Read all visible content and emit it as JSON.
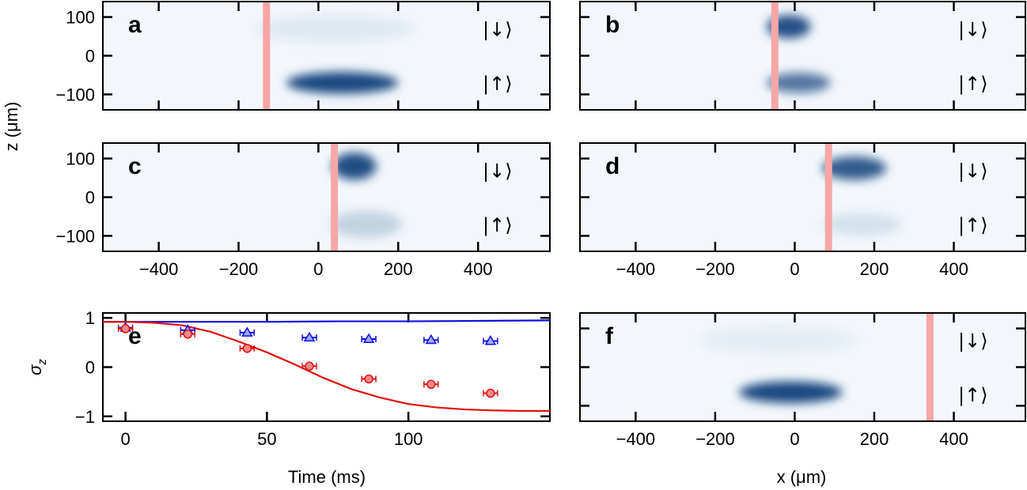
{
  "figure": {
    "ylabel_shared": "z (μm)",
    "xlabel_bottom_left": "Time (ms)",
    "xlabel_bottom_right": "x (μm)"
  },
  "colors": {
    "frame": "#000000",
    "bg": "#f3f7fc",
    "cloud": "#0d3f7a",
    "marker_band": "#f6a6a6",
    "red": "#e01010",
    "blue": "#1010e0"
  },
  "chart_data": [
    {
      "id": "a",
      "label": "a",
      "type": "heatmap",
      "x_ticks": [
        -400,
        -200,
        0,
        200,
        400
      ],
      "x_tick_labels": [
        "−400",
        "−200",
        "0",
        "200",
        "400"
      ],
      "y_ticks": [
        100,
        0,
        -100
      ],
      "y_tick_labels": [
        "100",
        "0",
        "−100"
      ],
      "xlim": [
        -540,
        580
      ],
      "ylim": [
        -140,
        140
      ],
      "show_x_labels": false,
      "show_y_labels": true,
      "marker_x": -130,
      "state_labels": [
        "|↓⟩",
        "|↑⟩"
      ],
      "clouds": [
        {
          "x": 60,
          "z": -70,
          "wx": 140,
          "wz": 28,
          "intensity": 0.95
        },
        {
          "x": 40,
          "z": 70,
          "wx": 200,
          "wz": 35,
          "intensity": 0.08
        }
      ]
    },
    {
      "id": "b",
      "label": "b",
      "type": "heatmap",
      "x_ticks": [
        -400,
        -200,
        0,
        200,
        400
      ],
      "x_tick_labels": [
        "−400",
        "−200",
        "0",
        "200",
        "400"
      ],
      "y_ticks": [
        100,
        0,
        -100
      ],
      "y_tick_labels": [
        "100",
        "0",
        "−100"
      ],
      "xlim": [
        -540,
        580
      ],
      "ylim": [
        -140,
        140
      ],
      "show_x_labels": false,
      "show_y_labels": false,
      "marker_x": -50,
      "state_labels": [
        "|↓⟩",
        "|↑⟩"
      ],
      "clouds": [
        {
          "x": -15,
          "z": 75,
          "wx": 55,
          "wz": 30,
          "intensity": 0.9
        },
        {
          "x": 10,
          "z": -70,
          "wx": 80,
          "wz": 26,
          "intensity": 0.7
        }
      ]
    },
    {
      "id": "c",
      "label": "c",
      "type": "heatmap",
      "x_ticks": [
        -400,
        -200,
        0,
        200,
        400
      ],
      "x_tick_labels": [
        "−400",
        "−200",
        "0",
        "200",
        "400"
      ],
      "y_ticks": [
        100,
        0,
        -100
      ],
      "y_tick_labels": [
        "100",
        "0",
        "−100"
      ],
      "xlim": [
        -540,
        580
      ],
      "ylim": [
        -140,
        140
      ],
      "show_x_labels": true,
      "show_y_labels": true,
      "marker_x": 40,
      "state_labels": [
        "|↓⟩",
        "|↑⟩"
      ],
      "clouds": [
        {
          "x": 90,
          "z": 80,
          "wx": 55,
          "wz": 35,
          "intensity": 0.92
        },
        {
          "x": 120,
          "z": -70,
          "wx": 90,
          "wz": 35,
          "intensity": 0.2
        }
      ]
    },
    {
      "id": "d",
      "label": "d",
      "type": "heatmap",
      "x_ticks": [
        -400,
        -200,
        0,
        200,
        400
      ],
      "x_tick_labels": [
        "−400",
        "−200",
        "0",
        "200",
        "400"
      ],
      "y_ticks": [
        100,
        0,
        -100
      ],
      "y_tick_labels": [
        "100",
        "0",
        "−100"
      ],
      "xlim": [
        -540,
        580
      ],
      "ylim": [
        -140,
        140
      ],
      "show_x_labels": true,
      "show_y_labels": false,
      "marker_x": 85,
      "state_labels": [
        "|↓⟩",
        "|↑⟩"
      ],
      "clouds": [
        {
          "x": 150,
          "z": 75,
          "wx": 80,
          "wz": 30,
          "intensity": 0.85
        },
        {
          "x": 170,
          "z": -70,
          "wx": 100,
          "wz": 30,
          "intensity": 0.12
        }
      ]
    },
    {
      "id": "e",
      "label": "e",
      "type": "scatter",
      "xlabel": "Time (ms)",
      "ylabel": "σz",
      "xlim": [
        -8,
        150
      ],
      "ylim": [
        -1.1,
        1.1
      ],
      "x_ticks": [
        0,
        50,
        100
      ],
      "x_tick_labels": [
        "0",
        "50",
        "100"
      ],
      "y_ticks": [
        1,
        0,
        -1
      ],
      "y_tick_labels": [
        "1",
        "0",
        "−1"
      ],
      "series": [
        {
          "name": "blue-triangles",
          "marker": "triangle",
          "color": "#1010e0",
          "x": [
            0,
            22,
            43,
            65,
            86,
            108,
            129
          ],
          "y": [
            0.8,
            0.75,
            0.7,
            0.6,
            0.57,
            0.55,
            0.53
          ],
          "xerr": 2.5
        },
        {
          "name": "red-circles",
          "marker": "circle",
          "color": "#e01010",
          "x": [
            0,
            22,
            43,
            65,
            86,
            108,
            129
          ],
          "y": [
            0.78,
            0.67,
            0.38,
            0.02,
            -0.24,
            -0.35,
            -0.53
          ],
          "xerr": 2.5
        },
        {
          "name": "blue-curve",
          "line": true,
          "color": "#1010e0",
          "x": [
            -8,
            0,
            25,
            50,
            75,
            100,
            125,
            150
          ],
          "y": [
            0.92,
            0.92,
            0.92,
            0.92,
            0.93,
            0.93,
            0.94,
            0.95
          ]
        },
        {
          "name": "red-curve",
          "line": true,
          "color": "#e01010",
          "x": [
            -8,
            0,
            10,
            20,
            30,
            40,
            50,
            60,
            70,
            80,
            90,
            100,
            110,
            120,
            130,
            140,
            150
          ],
          "y": [
            0.92,
            0.92,
            0.9,
            0.85,
            0.72,
            0.52,
            0.3,
            0.05,
            -0.22,
            -0.45,
            -0.62,
            -0.75,
            -0.82,
            -0.86,
            -0.88,
            -0.89,
            -0.89
          ]
        }
      ]
    },
    {
      "id": "f",
      "label": "f",
      "type": "heatmap",
      "x_ticks": [
        -400,
        -200,
        0,
        200,
        400
      ],
      "x_tick_labels": [
        "−400",
        "−200",
        "0",
        "200",
        "400"
      ],
      "y_ticks": [
        100,
        0,
        -100
      ],
      "y_tick_labels": [
        "100",
        "0",
        "−100"
      ],
      "xlim": [
        -540,
        580
      ],
      "ylim": [
        -140,
        140
      ],
      "show_x_labels": true,
      "show_y_labels": false,
      "marker_x": 340,
      "state_labels": [
        "|↓⟩",
        "|↑⟩"
      ],
      "clouds": [
        {
          "x": -10,
          "z": -65,
          "wx": 130,
          "wz": 28,
          "intensity": 0.95
        },
        {
          "x": -40,
          "z": 70,
          "wx": 200,
          "wz": 35,
          "intensity": 0.06
        }
      ]
    }
  ]
}
